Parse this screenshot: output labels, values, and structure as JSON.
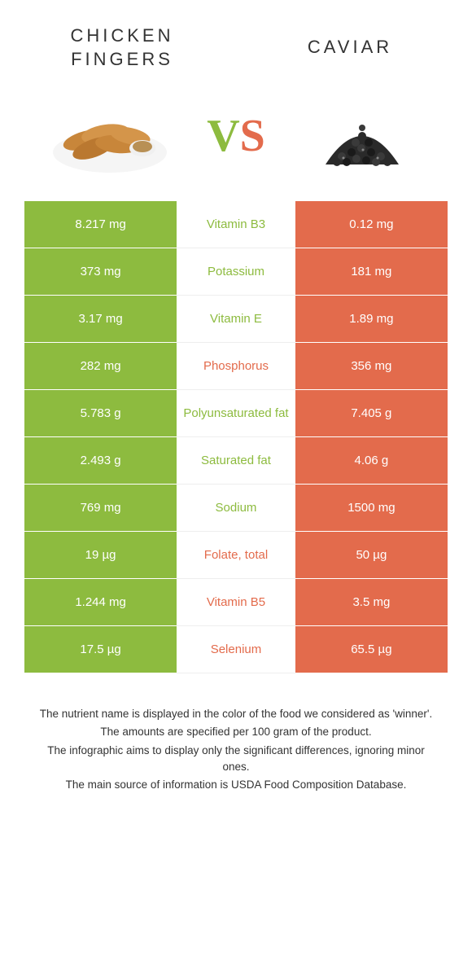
{
  "header": {
    "left_title": "CHICKEN FINGERS",
    "right_title": "CAVIAR",
    "vs_v": "V",
    "vs_s": "S"
  },
  "colors": {
    "green": "#8dbb3f",
    "orange": "#e36b4c",
    "background": "#ffffff",
    "text": "#333333"
  },
  "table": {
    "rows": [
      {
        "left": "8.217 mg",
        "label": "Vitamin B3",
        "right": "0.12 mg",
        "winner": "green"
      },
      {
        "left": "373 mg",
        "label": "Potassium",
        "right": "181 mg",
        "winner": "green"
      },
      {
        "left": "3.17 mg",
        "label": "Vitamin E",
        "right": "1.89 mg",
        "winner": "green"
      },
      {
        "left": "282 mg",
        "label": "Phosphorus",
        "right": "356 mg",
        "winner": "orange"
      },
      {
        "left": "5.783 g",
        "label": "Polyunsaturated fat",
        "right": "7.405 g",
        "winner": "green"
      },
      {
        "left": "2.493 g",
        "label": "Saturated fat",
        "right": "4.06 g",
        "winner": "green"
      },
      {
        "left": "769 mg",
        "label": "Sodium",
        "right": "1500 mg",
        "winner": "green"
      },
      {
        "left": "19 µg",
        "label": "Folate, total",
        "right": "50 µg",
        "winner": "orange"
      },
      {
        "left": "1.244 mg",
        "label": "Vitamin B5",
        "right": "3.5 mg",
        "winner": "orange"
      },
      {
        "left": "17.5 µg",
        "label": "Selenium",
        "right": "65.5 µg",
        "winner": "orange"
      }
    ]
  },
  "footer": {
    "line1": "The nutrient name is displayed in the color of the food we considered as 'winner'.",
    "line2": "The amounts are specified per 100 gram of the product.",
    "line3": "The infographic aims to display only the significant differences, ignoring minor ones.",
    "line4": "The main source of information is USDA Food Composition Database."
  }
}
